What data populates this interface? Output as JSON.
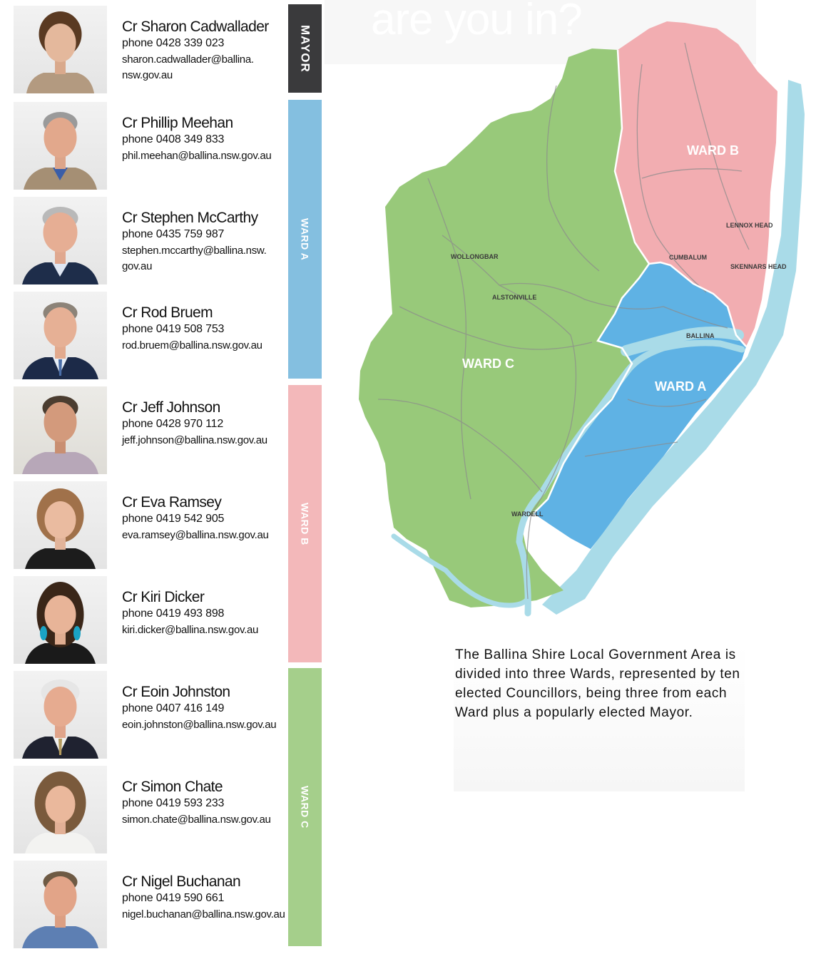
{
  "header": {
    "ghost_text": "are you in?"
  },
  "councillors": [
    {
      "name": "Cr Sharon Cadwallader",
      "phone": "phone 0428 339 023",
      "email": "sharon.cadwallader@ballina.\nnsw.gov.au"
    },
    {
      "name": "Cr Phillip Meehan",
      "phone": "phone 0408 349 833",
      "email": "phil.meehan@ballina.nsw.gov.au"
    },
    {
      "name": "Cr Stephen McCarthy",
      "phone": "phone 0435 759 987",
      "email": "stephen.mccarthy@ballina.nsw.\ngov.au"
    },
    {
      "name": "Cr Rod Bruem",
      "phone": "phone 0419 508 753",
      "email": "rod.bruem@ballina.nsw.gov.au"
    },
    {
      "name": "Cr Jeff Johnson",
      "phone": "phone 0428 970 112",
      "email": "jeff.johnson@ballina.nsw.gov.au"
    },
    {
      "name": "Cr Eva Ramsey",
      "phone": "phone 0419 542 905",
      "email": "eva.ramsey@ballina.nsw.gov.au"
    },
    {
      "name": "Cr Kiri Dicker",
      "phone": "phone 0419 493 898",
      "email": "kiri.dicker@ballina.nsw.gov.au"
    },
    {
      "name": "Cr Eoin Johnston",
      "phone": "phone 0407 416 149",
      "email": "eoin.johnston@ballina.nsw.gov.au"
    },
    {
      "name": "Cr Simon Chate",
      "phone": "phone 0419 593 233",
      "email": "simon.chate@ballina.nsw.gov.au"
    },
    {
      "name": "Cr Nigel Buchanan",
      "phone": "phone 0419 590 661",
      "email": "nigel.buchanan@ballina.nsw.gov.au"
    }
  ],
  "ward_bars": {
    "mayor": "MAYOR",
    "ward_a": "WARD A",
    "ward_b": "WARD B",
    "ward_c": "WARD C"
  },
  "colors": {
    "mayor": "#3a3a3c",
    "ward_a": "#84bfe0",
    "ward_b": "#f3b8ba",
    "ward_c": "#a5cf8b",
    "map_ward_a": "#5fb2e4",
    "map_ward_b": "#f2adb1",
    "map_ward_c": "#98c97a",
    "water": "#a9dbe8"
  },
  "map": {
    "ward_labels": {
      "ward_a": "WARD A",
      "ward_b": "WARD B",
      "ward_c": "WARD C"
    },
    "places": {
      "wollongbar": "WOLLONGBAR",
      "alstonville": "ALSTONVILLE",
      "cumbalum": "CUMBALUM",
      "lennox_head": "LENNOX HEAD",
      "skennars_head": "SKENNARS HEAD",
      "ballina": "BALLINA",
      "wardell": "WARDELL"
    }
  },
  "description": "The Ballina Shire Local Government Area is divided into three Wards, represented by ten elected Councillors, being three from each Ward plus a popularly elected Mayor."
}
